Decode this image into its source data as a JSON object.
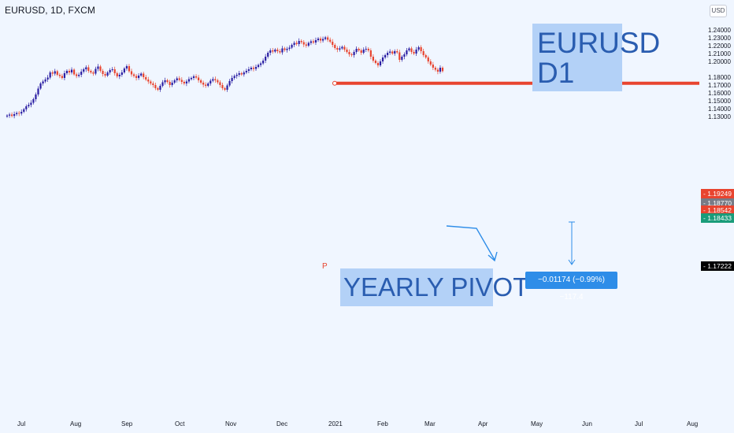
{
  "header": {
    "symbol_title": "EURUSD, 1D, FXCM",
    "currency_button": "USD"
  },
  "notes": {
    "eurusd_line1": "EURUSD",
    "eurusd_line2": "D1",
    "yearly_pivot": "YEARLY PIVOT",
    "pivot_marker": "P"
  },
  "measure": {
    "label": "−0.01174 (−0.99%) −117.4"
  },
  "colors": {
    "background": "#f0f6ff",
    "up_candle": "#2b1fa3",
    "down_candle": "#e8442f",
    "pivot_line": "#e8442f",
    "arrow": "#2e8de8",
    "note_bg": "#b3d1f7",
    "note_text": "#2a5db0"
  },
  "chart_data": {
    "type": "candlestick",
    "symbol": "EURUSD",
    "timeframe": "1D",
    "source": "FXCM",
    "x_labels": [
      "Jul",
      "Aug",
      "Sep",
      "Oct",
      "Nov",
      "Dec",
      "2021",
      "Feb",
      "Mar",
      "Apr",
      "May",
      "Jun",
      "Jul",
      "Aug"
    ],
    "y_ticks": [
      "1.24000",
      "1.23000",
      "1.22000",
      "1.21000",
      "1.20000",
      "1.18000",
      "1.17000",
      "1.16000",
      "1.15000",
      "1.14000",
      "1.13000"
    ],
    "ylim": [
      1.13,
      1.24
    ],
    "price_tags": [
      {
        "label": "1.19249",
        "value": 1.19249,
        "color": "#e8442f"
      },
      {
        "label": "1.18770",
        "value": 1.1877,
        "color": "#787b86"
      },
      {
        "label": "1.18542",
        "value": 1.18542,
        "color": "#e8442f"
      },
      {
        "label": "1.18433",
        "value": 1.18433,
        "color": "#1a9c7a"
      },
      {
        "label": "1.17222",
        "value": 1.17222,
        "color": "#000000"
      }
    ],
    "yearly_pivot": 1.17222,
    "measure_delta": -0.01174,
    "measure_percent": -0.99,
    "measure_pips": -117.4,
    "closes": [
      1.1312,
      1.1325,
      1.1308,
      1.133,
      1.1345,
      1.1338,
      1.136,
      1.1392,
      1.143,
      1.1448,
      1.1475,
      1.152,
      1.158,
      1.1655,
      1.172,
      1.1745,
      1.177,
      1.1795,
      1.186,
      1.1845,
      1.1875,
      1.183,
      1.1815,
      1.179,
      1.185,
      1.188,
      1.186,
      1.1895,
      1.1835,
      1.1815,
      1.183,
      1.187,
      1.19,
      1.1925,
      1.188,
      1.186,
      1.1845,
      1.1905,
      1.1935,
      1.188,
      1.184,
      1.182,
      1.186,
      1.189,
      1.19,
      1.185,
      1.181,
      1.183,
      1.186,
      1.191,
      1.194,
      1.1875,
      1.1835,
      1.1815,
      1.179,
      1.182,
      1.1845,
      1.18,
      1.177,
      1.1745,
      1.172,
      1.17,
      1.166,
      1.164,
      1.169,
      1.1735,
      1.176,
      1.174,
      1.17,
      1.173,
      1.176,
      1.1785,
      1.1765,
      1.174,
      1.172,
      1.1745,
      1.1775,
      1.179,
      1.181,
      1.1795,
      1.176,
      1.173,
      1.1705,
      1.169,
      1.172,
      1.1755,
      1.1775,
      1.176,
      1.1735,
      1.17,
      1.166,
      1.164,
      1.1695,
      1.175,
      1.179,
      1.1815,
      1.183,
      1.185,
      1.1835,
      1.186,
      1.188,
      1.19,
      1.192,
      1.1905,
      1.193,
      1.1955,
      1.1975,
      1.201,
      1.206,
      1.211,
      1.214,
      1.2125,
      1.215,
      1.213,
      1.2115,
      1.2165,
      1.2145,
      1.216,
      1.2175,
      1.221,
      1.2235,
      1.222,
      1.226,
      1.2245,
      1.2215,
      1.22,
      1.2235,
      1.2255,
      1.224,
      1.227,
      1.229,
      1.2265,
      1.2285,
      1.2305,
      1.2275,
      1.225,
      1.221,
      1.217,
      1.215,
      1.2165,
      1.2185,
      1.215,
      1.212,
      1.209,
      1.208,
      1.212,
      1.216,
      1.214,
      1.211,
      1.215,
      1.216,
      1.214,
      1.206,
      1.201,
      1.198,
      1.195,
      1.2,
      1.205,
      1.208,
      1.211,
      1.2125,
      1.21,
      1.213,
      1.2115,
      1.202,
      1.206,
      1.209,
      1.214,
      1.2165,
      1.212,
      1.21,
      1.215,
      1.218,
      1.213,
      1.208,
      1.205,
      1.2,
      1.196,
      1.192,
      1.1895,
      1.187,
      1.192,
      1.1877
    ]
  }
}
